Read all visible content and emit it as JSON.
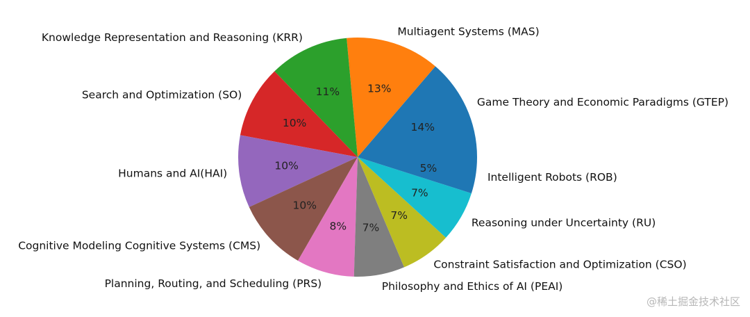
{
  "chart_data": {
    "type": "pie",
    "title": "",
    "start_angle_deg": 0,
    "direction": "counterclockwise",
    "slices": [
      {
        "label": "Game Theory and Economic Paradigms (GTEP)",
        "value": 14,
        "pct_label": "14%",
        "color": "#1f77b4"
      },
      {
        "label": "Multiagent Systems (MAS)",
        "value": 13,
        "pct_label": "13%",
        "color": "#ff7f0e"
      },
      {
        "label": "Knowledge Representation and Reasoning (KRR)",
        "value": 11,
        "pct_label": "11%",
        "color": "#2ca02c"
      },
      {
        "label": "Search and Optimization (SO)",
        "value": 10,
        "pct_label": "10%",
        "color": "#d62728"
      },
      {
        "label": "Humans and AI(HAI)",
        "value": 10,
        "pct_label": "10%",
        "color": "#9467bd"
      },
      {
        "label": "Cognitive Modeling Cognitive Systems (CMS)",
        "value": 10,
        "pct_label": "10%",
        "color": "#8c564b"
      },
      {
        "label": "Planning, Routing, and Scheduling (PRS)",
        "value": 8,
        "pct_label": "8%",
        "color": "#e377c2"
      },
      {
        "label": "Philosophy and Ethics of AI (PEAI)",
        "value": 7,
        "pct_label": "7%",
        "color": "#7f7f7f"
      },
      {
        "label": "Constraint Satisfaction and Optimization (CSO)",
        "value": 7,
        "pct_label": "7%",
        "color": "#bcbd22"
      },
      {
        "label": "Reasoning under Uncertainty (RU)",
        "value": 7,
        "pct_label": "7%",
        "color": "#17becf"
      },
      {
        "label": "Intelligent Robots (ROB)",
        "value": 5,
        "pct_label": "5%",
        "color": "#1f77b4"
      }
    ]
  },
  "watermark": "@稀土掘金技术社区"
}
